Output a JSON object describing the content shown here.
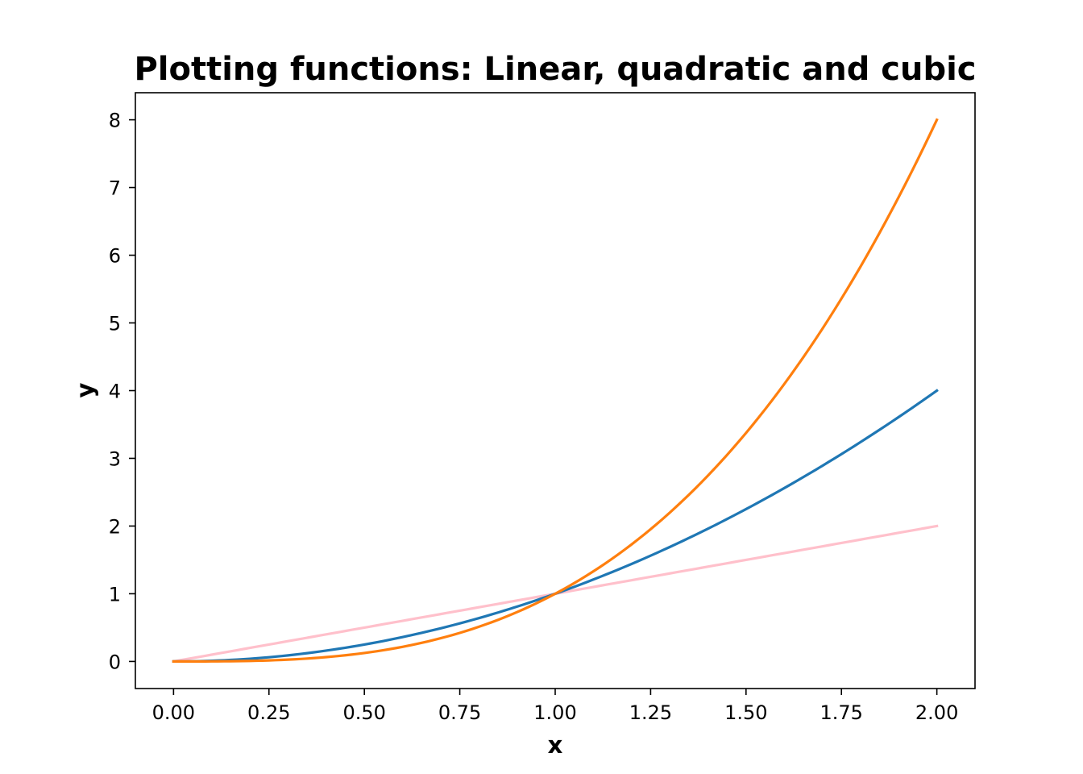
{
  "chart_data": {
    "type": "line",
    "title": "Plotting functions: Linear, quadratic and cubic",
    "xlabel": "x",
    "ylabel": "y",
    "xlim": [
      -0.1,
      2.1
    ],
    "ylim": [
      -0.4,
      8.4
    ],
    "x_ticks": [
      "0.00",
      "0.25",
      "0.50",
      "0.75",
      "1.00",
      "1.25",
      "1.50",
      "1.75",
      "2.00"
    ],
    "y_ticks": [
      "0",
      "1",
      "2",
      "3",
      "4",
      "5",
      "6",
      "7",
      "8"
    ],
    "grid": false,
    "x_range": [
      0,
      2
    ],
    "series": [
      {
        "function": "x",
        "color": "#ffc0cb",
        "x": [
          0,
          0.25,
          0.5,
          0.75,
          1,
          1.25,
          1.5,
          1.75,
          2
        ],
        "values": [
          0,
          0.25,
          0.5,
          0.75,
          1,
          1.25,
          1.5,
          1.75,
          2
        ]
      },
      {
        "function": "x^2",
        "color": "#1f77b4",
        "x": [
          0,
          0.25,
          0.5,
          0.75,
          1,
          1.25,
          1.5,
          1.75,
          2
        ],
        "values": [
          0,
          0.0625,
          0.25,
          0.5625,
          1,
          1.5625,
          2.25,
          3.0625,
          4
        ]
      },
      {
        "function": "x^3",
        "color": "#ff7f0e",
        "x": [
          0,
          0.25,
          0.5,
          0.75,
          1,
          1.25,
          1.5,
          1.75,
          2
        ],
        "values": [
          0,
          0.015625,
          0.125,
          0.421875,
          1,
          1.953125,
          3.375,
          5.359375,
          8
        ]
      }
    ]
  }
}
